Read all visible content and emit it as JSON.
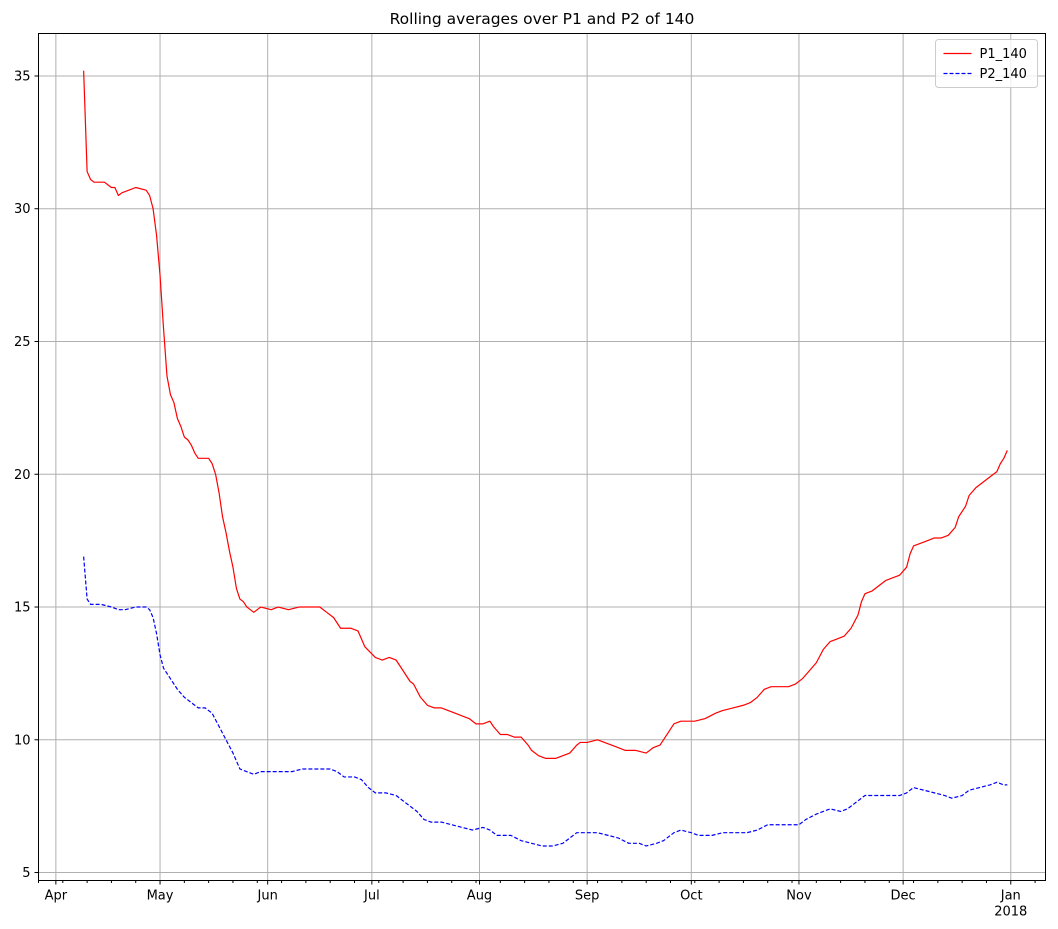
{
  "chart_data": {
    "type": "line",
    "title": "Rolling averages over P1 and P2 of 140",
    "xlabel": "",
    "ylabel": "",
    "xlim": [
      "2017-03-27",
      "2018-01-11"
    ],
    "ylim": [
      4.7,
      36.6
    ],
    "grid": true,
    "legend_position": "top-right",
    "x_ticks": [
      {
        "date": "2017-04-01",
        "label": "Apr"
      },
      {
        "date": "2017-05-01",
        "label": "May"
      },
      {
        "date": "2017-06-01",
        "label": "Jun"
      },
      {
        "date": "2017-07-01",
        "label": "Jul"
      },
      {
        "date": "2017-08-01",
        "label": "Aug"
      },
      {
        "date": "2017-09-01",
        "label": "Sep"
      },
      {
        "date": "2017-10-01",
        "label": "Oct"
      },
      {
        "date": "2017-11-01",
        "label": "Nov"
      },
      {
        "date": "2017-12-01",
        "label": "Dec"
      },
      {
        "date": "2018-01-01",
        "label": "Jan",
        "sublabel": "2018"
      }
    ],
    "y_ticks": [
      5,
      10,
      15,
      20,
      25,
      30,
      35
    ],
    "series": [
      {
        "name": "P1_140",
        "color": "#ff0000",
        "style": "solid",
        "points": [
          [
            "2017-04-09",
            35.2
          ],
          [
            "2017-04-10",
            31.4
          ],
          [
            "2017-04-11",
            31.1
          ],
          [
            "2017-04-12",
            31.0
          ],
          [
            "2017-04-15",
            31.0
          ],
          [
            "2017-04-16",
            30.9
          ],
          [
            "2017-04-17",
            30.8
          ],
          [
            "2017-04-18",
            30.8
          ],
          [
            "2017-04-19",
            30.5
          ],
          [
            "2017-04-20",
            30.6
          ],
          [
            "2017-04-22",
            30.7
          ],
          [
            "2017-04-24",
            30.8
          ],
          [
            "2017-04-27",
            30.7
          ],
          [
            "2017-04-28",
            30.5
          ],
          [
            "2017-04-29",
            30.0
          ],
          [
            "2017-04-30",
            29.0
          ],
          [
            "2017-05-01",
            27.5
          ],
          [
            "2017-05-02",
            25.5
          ],
          [
            "2017-05-03",
            23.7
          ],
          [
            "2017-05-04",
            23.0
          ],
          [
            "2017-05-05",
            22.7
          ],
          [
            "2017-05-06",
            22.1
          ],
          [
            "2017-05-07",
            21.8
          ],
          [
            "2017-05-08",
            21.4
          ],
          [
            "2017-05-09",
            21.3
          ],
          [
            "2017-05-10",
            21.1
          ],
          [
            "2017-05-11",
            20.8
          ],
          [
            "2017-05-12",
            20.6
          ],
          [
            "2017-05-14",
            20.6
          ],
          [
            "2017-05-15",
            20.6
          ],
          [
            "2017-05-16",
            20.4
          ],
          [
            "2017-05-17",
            20.0
          ],
          [
            "2017-05-18",
            19.3
          ],
          [
            "2017-05-19",
            18.4
          ],
          [
            "2017-05-20",
            17.8
          ],
          [
            "2017-05-21",
            17.1
          ],
          [
            "2017-05-22",
            16.5
          ],
          [
            "2017-05-23",
            15.7
          ],
          [
            "2017-05-24",
            15.3
          ],
          [
            "2017-05-25",
            15.2
          ],
          [
            "2017-05-26",
            15.0
          ],
          [
            "2017-05-27",
            14.9
          ],
          [
            "2017-05-28",
            14.8
          ],
          [
            "2017-05-29",
            14.9
          ],
          [
            "2017-05-30",
            15.0
          ],
          [
            "2017-06-02",
            14.9
          ],
          [
            "2017-06-04",
            15.0
          ],
          [
            "2017-06-07",
            14.9
          ],
          [
            "2017-06-10",
            15.0
          ],
          [
            "2017-06-13",
            15.0
          ],
          [
            "2017-06-16",
            15.0
          ],
          [
            "2017-06-18",
            14.8
          ],
          [
            "2017-06-20",
            14.6
          ],
          [
            "2017-06-22",
            14.2
          ],
          [
            "2017-06-25",
            14.2
          ],
          [
            "2017-06-27",
            14.1
          ],
          [
            "2017-06-29",
            13.5
          ],
          [
            "2017-07-02",
            13.1
          ],
          [
            "2017-07-04",
            13.0
          ],
          [
            "2017-07-06",
            13.1
          ],
          [
            "2017-07-08",
            13.0
          ],
          [
            "2017-07-10",
            12.6
          ],
          [
            "2017-07-12",
            12.2
          ],
          [
            "2017-07-13",
            12.1
          ],
          [
            "2017-07-15",
            11.6
          ],
          [
            "2017-07-17",
            11.3
          ],
          [
            "2017-07-19",
            11.2
          ],
          [
            "2017-07-21",
            11.2
          ],
          [
            "2017-07-23",
            11.1
          ],
          [
            "2017-07-25",
            11.0
          ],
          [
            "2017-07-27",
            10.9
          ],
          [
            "2017-07-29",
            10.8
          ],
          [
            "2017-07-31",
            10.6
          ],
          [
            "2017-08-02",
            10.6
          ],
          [
            "2017-08-04",
            10.7
          ],
          [
            "2017-08-05",
            10.5
          ],
          [
            "2017-08-07",
            10.2
          ],
          [
            "2017-08-09",
            10.2
          ],
          [
            "2017-08-11",
            10.1
          ],
          [
            "2017-08-13",
            10.1
          ],
          [
            "2017-08-15",
            9.8
          ],
          [
            "2017-08-16",
            9.6
          ],
          [
            "2017-08-18",
            9.4
          ],
          [
            "2017-08-20",
            9.3
          ],
          [
            "2017-08-23",
            9.3
          ],
          [
            "2017-08-25",
            9.4
          ],
          [
            "2017-08-27",
            9.5
          ],
          [
            "2017-08-29",
            9.8
          ],
          [
            "2017-08-30",
            9.9
          ],
          [
            "2017-09-01",
            9.9
          ],
          [
            "2017-09-04",
            10.0
          ],
          [
            "2017-09-06",
            9.9
          ],
          [
            "2017-09-08",
            9.8
          ],
          [
            "2017-09-10",
            9.7
          ],
          [
            "2017-09-12",
            9.6
          ],
          [
            "2017-09-15",
            9.6
          ],
          [
            "2017-09-18",
            9.5
          ],
          [
            "2017-09-20",
            9.7
          ],
          [
            "2017-09-22",
            9.8
          ],
          [
            "2017-09-24",
            10.2
          ],
          [
            "2017-09-26",
            10.6
          ],
          [
            "2017-09-28",
            10.7
          ],
          [
            "2017-09-30",
            10.7
          ],
          [
            "2017-10-02",
            10.7
          ],
          [
            "2017-10-05",
            10.8
          ],
          [
            "2017-10-08",
            11.0
          ],
          [
            "2017-10-10",
            11.1
          ],
          [
            "2017-10-13",
            11.2
          ],
          [
            "2017-10-16",
            11.3
          ],
          [
            "2017-10-18",
            11.4
          ],
          [
            "2017-10-20",
            11.6
          ],
          [
            "2017-10-22",
            11.9
          ],
          [
            "2017-10-24",
            12.0
          ],
          [
            "2017-10-27",
            12.0
          ],
          [
            "2017-10-29",
            12.0
          ],
          [
            "2017-10-31",
            12.1
          ],
          [
            "2017-11-02",
            12.3
          ],
          [
            "2017-11-04",
            12.6
          ],
          [
            "2017-11-06",
            12.9
          ],
          [
            "2017-11-08",
            13.4
          ],
          [
            "2017-11-10",
            13.7
          ],
          [
            "2017-11-12",
            13.8
          ],
          [
            "2017-11-14",
            13.9
          ],
          [
            "2017-11-16",
            14.2
          ],
          [
            "2017-11-18",
            14.7
          ],
          [
            "2017-11-19",
            15.2
          ],
          [
            "2017-11-20",
            15.5
          ],
          [
            "2017-11-22",
            15.6
          ],
          [
            "2017-11-24",
            15.8
          ],
          [
            "2017-11-26",
            16.0
          ],
          [
            "2017-11-28",
            16.1
          ],
          [
            "2017-11-30",
            16.2
          ],
          [
            "2017-12-02",
            16.5
          ],
          [
            "2017-12-03",
            17.0
          ],
          [
            "2017-12-04",
            17.3
          ],
          [
            "2017-12-06",
            17.4
          ],
          [
            "2017-12-08",
            17.5
          ],
          [
            "2017-12-10",
            17.6
          ],
          [
            "2017-12-12",
            17.6
          ],
          [
            "2017-12-14",
            17.7
          ],
          [
            "2017-12-16",
            18.0
          ],
          [
            "2017-12-17",
            18.4
          ],
          [
            "2017-12-19",
            18.8
          ],
          [
            "2017-12-20",
            19.2
          ],
          [
            "2017-12-22",
            19.5
          ],
          [
            "2017-12-24",
            19.7
          ],
          [
            "2017-12-26",
            19.9
          ],
          [
            "2017-12-28",
            20.1
          ],
          [
            "2017-12-29",
            20.4
          ],
          [
            "2017-12-30",
            20.6
          ],
          [
            "2017-12-31",
            20.9
          ]
        ]
      },
      {
        "name": "P2_140",
        "color": "#0000ff",
        "style": "dashed",
        "points": [
          [
            "2017-04-09",
            16.9
          ],
          [
            "2017-04-10",
            15.3
          ],
          [
            "2017-04-11",
            15.1
          ],
          [
            "2017-04-14",
            15.1
          ],
          [
            "2017-04-17",
            15.0
          ],
          [
            "2017-04-19",
            14.9
          ],
          [
            "2017-04-21",
            14.9
          ],
          [
            "2017-04-24",
            15.0
          ],
          [
            "2017-04-27",
            15.0
          ],
          [
            "2017-04-28",
            14.9
          ],
          [
            "2017-04-29",
            14.6
          ],
          [
            "2017-04-30",
            14.0
          ],
          [
            "2017-05-01",
            13.2
          ],
          [
            "2017-05-02",
            12.7
          ],
          [
            "2017-05-04",
            12.3
          ],
          [
            "2017-05-06",
            11.9
          ],
          [
            "2017-05-08",
            11.6
          ],
          [
            "2017-05-10",
            11.4
          ],
          [
            "2017-05-12",
            11.2
          ],
          [
            "2017-05-14",
            11.2
          ],
          [
            "2017-05-16",
            11.0
          ],
          [
            "2017-05-18",
            10.5
          ],
          [
            "2017-05-20",
            10.0
          ],
          [
            "2017-05-22",
            9.5
          ],
          [
            "2017-05-24",
            8.9
          ],
          [
            "2017-05-26",
            8.8
          ],
          [
            "2017-05-28",
            8.7
          ],
          [
            "2017-05-30",
            8.8
          ],
          [
            "2017-06-02",
            8.8
          ],
          [
            "2017-06-05",
            8.8
          ],
          [
            "2017-06-08",
            8.8
          ],
          [
            "2017-06-11",
            8.9
          ],
          [
            "2017-06-15",
            8.9
          ],
          [
            "2017-06-19",
            8.9
          ],
          [
            "2017-06-21",
            8.8
          ],
          [
            "2017-06-23",
            8.6
          ],
          [
            "2017-06-26",
            8.6
          ],
          [
            "2017-06-28",
            8.5
          ],
          [
            "2017-06-30",
            8.2
          ],
          [
            "2017-07-02",
            8.0
          ],
          [
            "2017-07-05",
            8.0
          ],
          [
            "2017-07-08",
            7.9
          ],
          [
            "2017-07-10",
            7.7
          ],
          [
            "2017-07-12",
            7.5
          ],
          [
            "2017-07-14",
            7.3
          ],
          [
            "2017-07-16",
            7.0
          ],
          [
            "2017-07-18",
            6.9
          ],
          [
            "2017-07-21",
            6.9
          ],
          [
            "2017-07-24",
            6.8
          ],
          [
            "2017-07-27",
            6.7
          ],
          [
            "2017-07-30",
            6.6
          ],
          [
            "2017-08-02",
            6.7
          ],
          [
            "2017-08-04",
            6.6
          ],
          [
            "2017-08-06",
            6.4
          ],
          [
            "2017-08-10",
            6.4
          ],
          [
            "2017-08-13",
            6.2
          ],
          [
            "2017-08-16",
            6.1
          ],
          [
            "2017-08-19",
            6.0
          ],
          [
            "2017-08-22",
            6.0
          ],
          [
            "2017-08-25",
            6.1
          ],
          [
            "2017-08-27",
            6.3
          ],
          [
            "2017-08-29",
            6.5
          ],
          [
            "2017-09-01",
            6.5
          ],
          [
            "2017-09-04",
            6.5
          ],
          [
            "2017-09-07",
            6.4
          ],
          [
            "2017-09-10",
            6.3
          ],
          [
            "2017-09-13",
            6.1
          ],
          [
            "2017-09-16",
            6.1
          ],
          [
            "2017-09-18",
            6.0
          ],
          [
            "2017-09-21",
            6.1
          ],
          [
            "2017-09-23",
            6.2
          ],
          [
            "2017-09-26",
            6.5
          ],
          [
            "2017-09-28",
            6.6
          ],
          [
            "2017-10-01",
            6.5
          ],
          [
            "2017-10-03",
            6.4
          ],
          [
            "2017-10-07",
            6.4
          ],
          [
            "2017-10-10",
            6.5
          ],
          [
            "2017-10-14",
            6.5
          ],
          [
            "2017-10-17",
            6.5
          ],
          [
            "2017-10-20",
            6.6
          ],
          [
            "2017-10-23",
            6.8
          ],
          [
            "2017-10-26",
            6.8
          ],
          [
            "2017-10-29",
            6.8
          ],
          [
            "2017-11-01",
            6.8
          ],
          [
            "2017-11-03",
            7.0
          ],
          [
            "2017-11-06",
            7.2
          ],
          [
            "2017-11-08",
            7.3
          ],
          [
            "2017-11-10",
            7.4
          ],
          [
            "2017-11-13",
            7.3
          ],
          [
            "2017-11-15",
            7.4
          ],
          [
            "2017-11-18",
            7.7
          ],
          [
            "2017-11-20",
            7.9
          ],
          [
            "2017-11-23",
            7.9
          ],
          [
            "2017-11-26",
            7.9
          ],
          [
            "2017-11-30",
            7.9
          ],
          [
            "2017-12-02",
            8.0
          ],
          [
            "2017-12-04",
            8.2
          ],
          [
            "2017-12-07",
            8.1
          ],
          [
            "2017-12-10",
            8.0
          ],
          [
            "2017-12-13",
            7.9
          ],
          [
            "2017-12-15",
            7.8
          ],
          [
            "2017-12-18",
            7.9
          ],
          [
            "2017-12-20",
            8.1
          ],
          [
            "2017-12-23",
            8.2
          ],
          [
            "2017-12-26",
            8.3
          ],
          [
            "2017-12-28",
            8.4
          ],
          [
            "2017-12-30",
            8.3
          ],
          [
            "2017-12-31",
            8.3
          ]
        ]
      }
    ]
  }
}
